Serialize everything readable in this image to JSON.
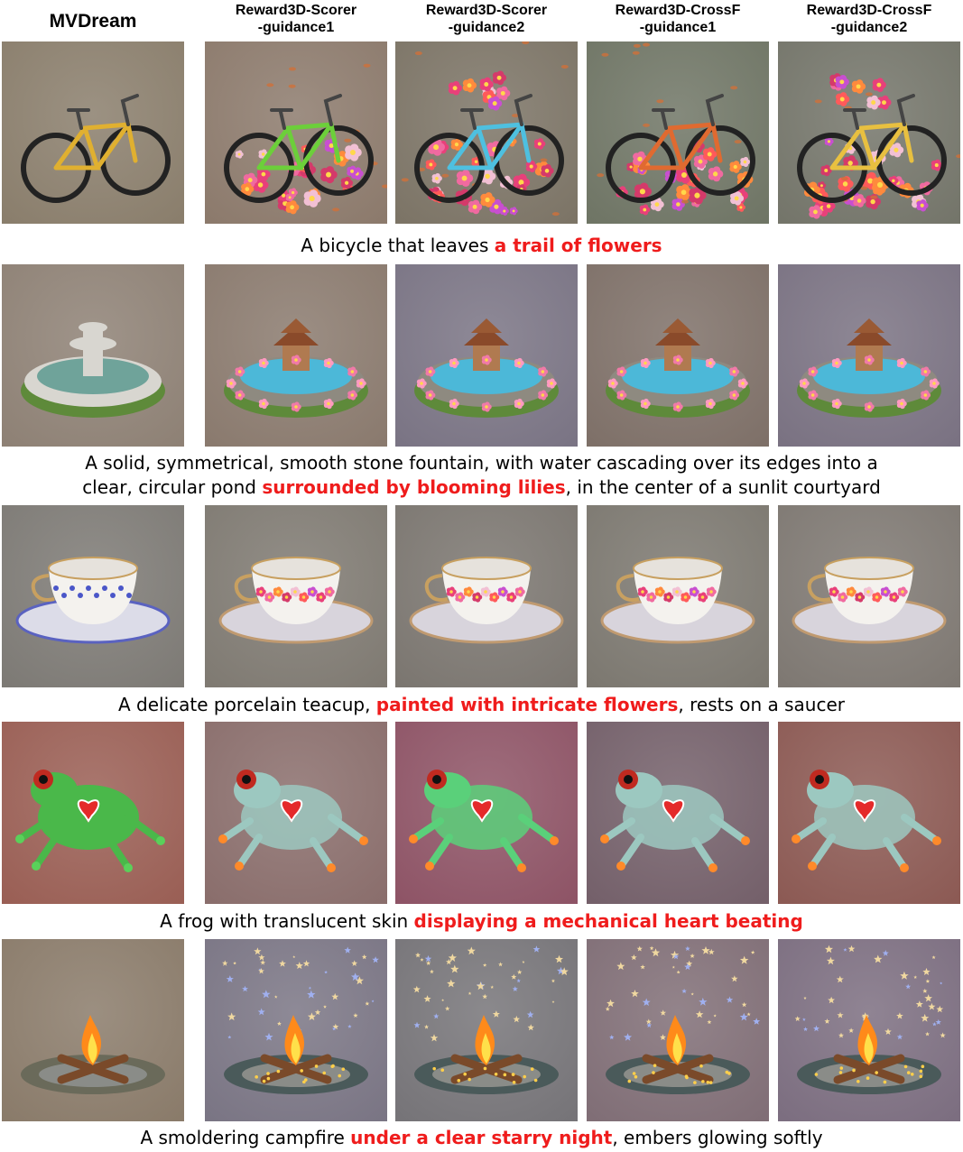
{
  "columns": [
    {
      "line1": "MVDream",
      "line2": ""
    },
    {
      "line1": "Reward3D-Scorer",
      "line2": "-guidance1"
    },
    {
      "line1": "Reward3D-Scorer",
      "line2": "-guidance2"
    },
    {
      "line1": "Reward3D-CrossF",
      "line2": "-guidance1"
    },
    {
      "line1": "Reward3D-CrossF",
      "line2": "-guidance2"
    }
  ],
  "rows": [
    {
      "subject": "bicycle-icon",
      "caption_lines": [
        {
          "pre": "A bicycle that leaves ",
          "hl": "a trail of flowers",
          "post": ""
        }
      ],
      "backgrounds": [
        "#8a7e6c",
        "#8c7a6c",
        "#7c7466",
        "#6f7565",
        "#74756a"
      ]
    },
    {
      "subject": "fountain-icon",
      "caption_lines": [
        {
          "pre": "A solid, symmetrical, smooth stone fountain, with water cascading over its edges into a",
          "hl": "",
          "post": ""
        },
        {
          "pre": "clear, circular pond ",
          "hl": "surrounded by blooming lilies",
          "post": ", in the center of a sunlit courtyard"
        }
      ],
      "backgrounds": [
        "#8e8175",
        "#8a7a6e",
        "#7a7484",
        "#7e7068",
        "#7a7282"
      ]
    },
    {
      "subject": "teacup-icon",
      "caption_lines": [
        {
          "pre": "A delicate porcelain teacup, ",
          "hl": "painted with intricate flowers",
          "post": ", rests on a saucer"
        }
      ],
      "backgrounds": [
        "#7d7a75",
        "#7f7a72",
        "#7b7670",
        "#7c7870",
        "#7e7872"
      ]
    },
    {
      "subject": "frog-icon",
      "caption_lines": [
        {
          "pre": "A frog with translucent skin ",
          "hl": "displaying a mechanical heart beating",
          "post": ""
        }
      ],
      "backgrounds": [
        "#9a5f55",
        "#8a6e6c",
        "#8e5466",
        "#74606a",
        "#8c5a54"
      ]
    },
    {
      "subject": "campfire-icon",
      "caption_lines": [
        {
          "pre": "A smoldering campfire ",
          "hl": "under a clear starry night",
          "post": ", embers glowing softly"
        }
      ],
      "backgrounds": [
        "#8a7b6a",
        "#7a7584",
        "#767478",
        "#806e76",
        "#7c6e80"
      ]
    }
  ]
}
